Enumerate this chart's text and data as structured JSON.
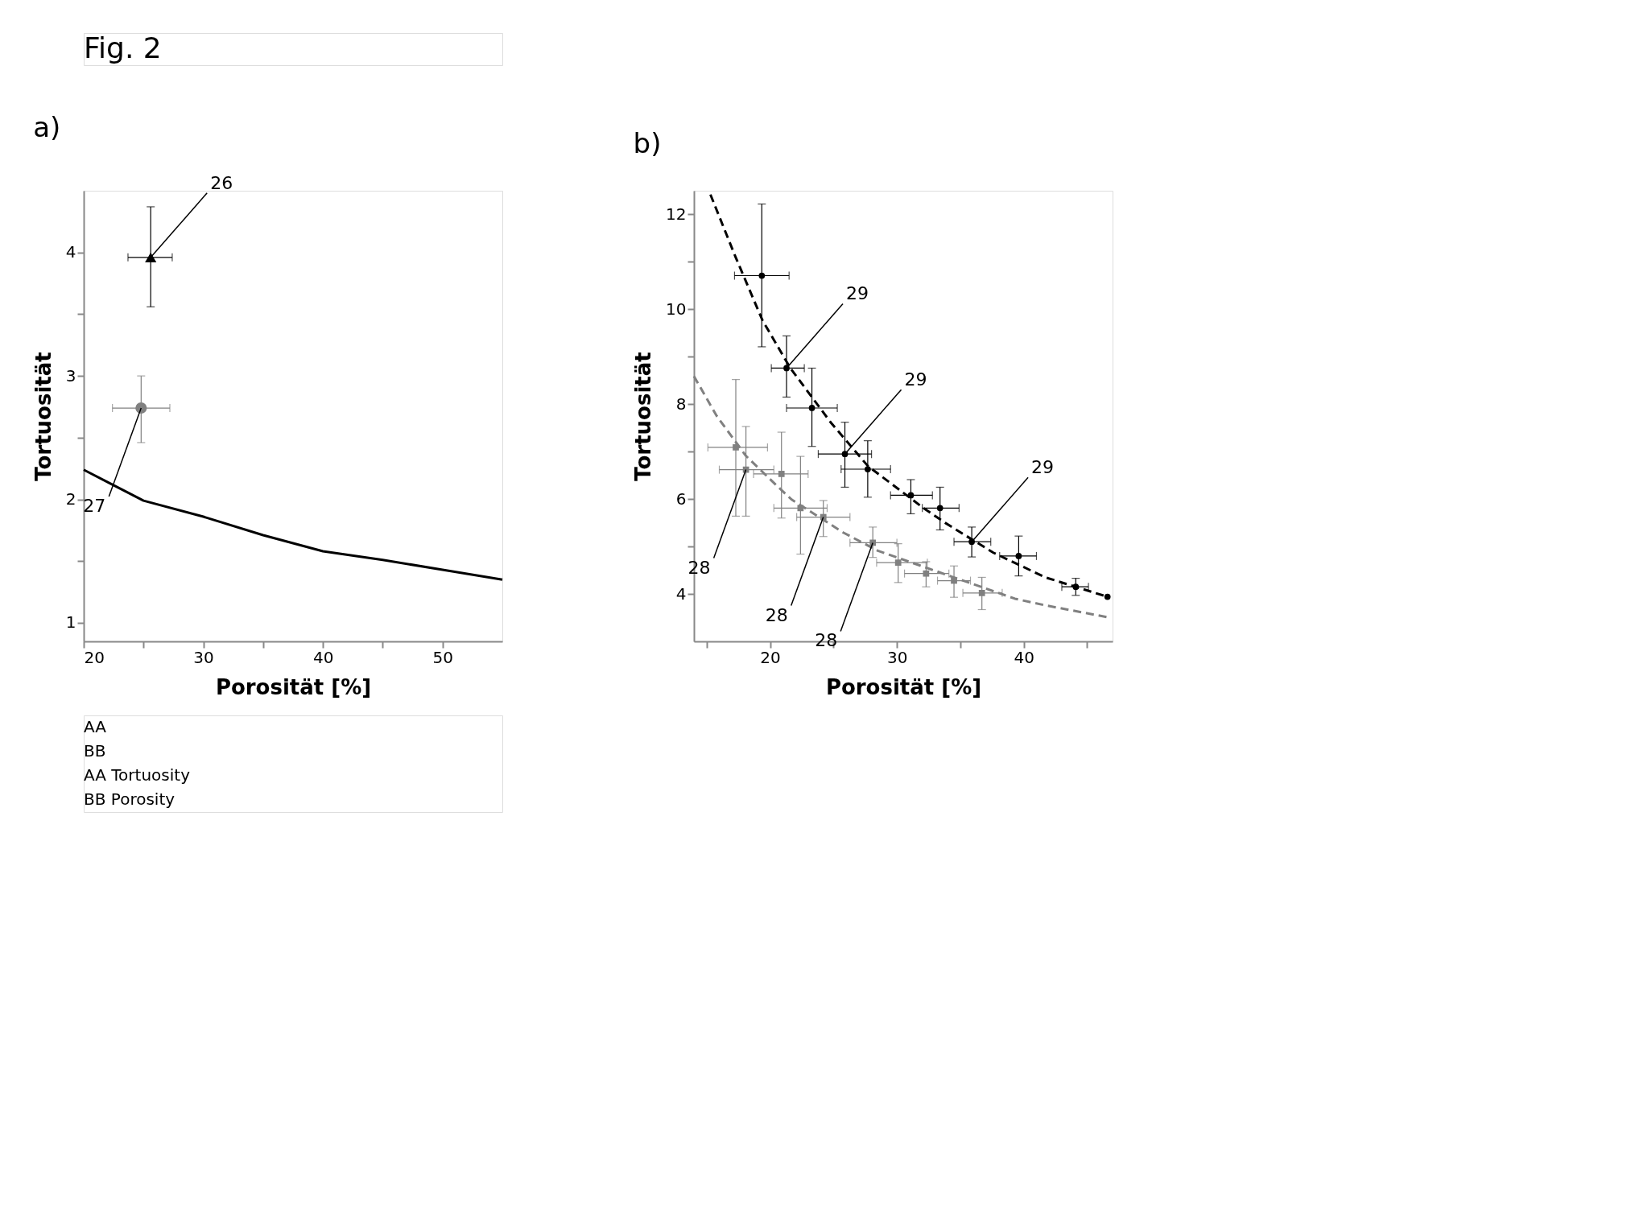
{
  "chart_data": [
    {
      "type": "scatter",
      "title": "a)",
      "xlabel": "Porosität [%]",
      "ylabel": "Tortuosität",
      "xlim": [
        20,
        55
      ],
      "ylim": [
        0.85,
        4.5
      ],
      "xticks": [
        20,
        {
          "value": 25,
          "label": null
        },
        30,
        {
          "value": 35,
          "label": null
        },
        40,
        {
          "value": 45,
          "label": null
        },
        50
      ],
      "yticks": [
        1,
        {
          "value": 1.5,
          "label": null
        },
        2,
        {
          "value": 2.5,
          "label": null
        },
        3,
        {
          "value": 3.5,
          "label": null
        },
        4
      ],
      "series": [
        {
          "type": "scatter",
          "marker": "triangle",
          "color": "#000000",
          "x": [
            25.6
          ],
          "values": [
            3.96
          ],
          "errors": [
            [
              3.56,
              4.37
            ]
          ],
          "xerrors": [
            [
              23.7,
              27.4
            ]
          ]
        },
        {
          "type": "scatter",
          "marker": "circle",
          "color": "#808080",
          "x": [
            24.8
          ],
          "values": [
            2.74
          ],
          "errors": [
            [
              2.46,
              3.0
            ]
          ],
          "xerrors": [
            [
              22.4,
              27.2
            ]
          ]
        },
        {
          "type": "line",
          "line_style": "solid",
          "color": "#000000",
          "x": [
            20,
            22,
            25,
            30,
            35,
            40,
            45,
            50,
            55
          ],
          "values": [
            2.24,
            2.14,
            1.99,
            1.86,
            1.71,
            1.58,
            1.51,
            1.43,
            1.35
          ]
        }
      ],
      "annotations": [
        "Fig. 2",
        "AA",
        "BB",
        "AA    Tortuosity",
        "BB    Porosity",
        {
          "text": "26",
          "x": 25.6,
          "y": 3.96
        },
        {
          "text": "27",
          "x": 24.8,
          "y": 2.74
        }
      ]
    },
    {
      "type": "scatter",
      "title": "b)",
      "xlabel": "Porosität [%]",
      "ylabel": "Tortuosität",
      "xlim": [
        14,
        47
      ],
      "ylim": [
        3.0,
        12.5
      ],
      "xticks": [
        {
          "value": 15,
          "label": null
        },
        20,
        {
          "value": 25,
          "label": null
        },
        30,
        {
          "value": 35,
          "label": null
        },
        40,
        {
          "value": 45,
          "label": null
        }
      ],
      "yticks": [
        4,
        {
          "value": 5,
          "label": null
        },
        6,
        {
          "value": 7,
          "label": null
        },
        8,
        {
          "value": 9,
          "label": null
        },
        10,
        {
          "value": 11,
          "label": null
        },
        12
      ],
      "series": [
        {
          "type": "scatter",
          "marker": "circle",
          "color": "#000000",
          "x": [
            19.35,
            21.3,
            23.3,
            25.9,
            27.7,
            31.1,
            33.4,
            35.9,
            39.6,
            44.1,
            46.6
          ],
          "values": [
            10.71,
            8.76,
            7.92,
            6.95,
            6.63,
            6.08,
            5.81,
            5.1,
            4.8,
            4.15,
            3.94
          ],
          "errors": [
            [
              9.21,
              12.22
            ],
            [
              8.15,
              9.44
            ],
            [
              7.11,
              8.76
            ],
            [
              6.25,
              7.62
            ],
            [
              6.04,
              7.23
            ],
            [
              5.69,
              6.41
            ],
            [
              5.35,
              6.25
            ],
            [
              4.78,
              5.41
            ],
            [
              4.38,
              5.22
            ],
            [
              3.97,
              4.33
            ],
            null
          ],
          "xerrors": [
            [
              17.2,
              21.5
            ],
            [
              20.1,
              22.7
            ],
            [
              21.3,
              25.3
            ],
            [
              23.8,
              28.0
            ],
            [
              25.6,
              29.5
            ],
            [
              29.5,
              32.8
            ],
            [
              32.0,
              34.9
            ],
            [
              34.5,
              37.4
            ],
            [
              38.1,
              41.0
            ],
            [
              43.0,
              45.1
            ],
            null
          ]
        },
        {
          "type": "scatter",
          "marker": "square",
          "color": "#808080",
          "x": [
            17.3,
            18.1,
            20.9,
            22.4,
            24.2,
            28.1,
            30.1,
            32.3,
            34.5,
            36.7
          ],
          "values": [
            7.09,
            6.62,
            6.53,
            5.81,
            5.62,
            5.08,
            4.66,
            4.43,
            4.28,
            4.02
          ],
          "errors": [
            [
              5.64,
              8.52
            ],
            [
              5.64,
              7.53
            ],
            [
              5.6,
              7.41
            ],
            [
              4.84,
              6.9
            ],
            [
              5.21,
              5.97
            ],
            [
              4.77,
              5.41
            ],
            [
              4.24,
              5.06
            ],
            [
              4.15,
              4.68
            ],
            [
              3.93,
              4.59
            ],
            [
              3.67,
              4.35
            ]
          ],
          "xerrors": [
            [
              15.1,
              19.8
            ],
            [
              16.0,
              20.3
            ],
            [
              18.7,
              23.0
            ],
            [
              20.3,
              24.5
            ],
            [
              22.1,
              26.3
            ],
            [
              26.3,
              30.0
            ],
            [
              28.4,
              32.4
            ],
            [
              30.6,
              34.1
            ],
            [
              33.2,
              35.8
            ],
            [
              35.2,
              38.3
            ]
          ]
        },
        {
          "type": "line",
          "line_style": "dashed",
          "color": "#000000",
          "x": [
            15.3,
            17.3,
            19.4,
            21.6,
            24.8,
            27.7,
            32.1,
            33.8,
            37.6,
            41.7,
            46.6
          ],
          "values": [
            12.42,
            11.09,
            9.77,
            8.76,
            7.61,
            6.7,
            5.81,
            5.5,
            4.87,
            4.35,
            3.94
          ]
        },
        {
          "type": "line",
          "line_style": "dashed",
          "color": "#808080",
          "x": [
            14,
            15.8,
            18.1,
            20.5,
            21.7,
            25.8,
            28.5,
            39.3,
            41.7,
            46.6
          ],
          "values": [
            8.59,
            7.75,
            6.91,
            6.29,
            5.99,
            5.29,
            4.91,
            3.9,
            3.76,
            3.51
          ]
        }
      ],
      "annotations": [
        {
          "text": "29",
          "x": 21.3,
          "y": 8.76
        },
        {
          "text": "29",
          "x": 25.9,
          "y": 6.95
        },
        {
          "text": "29",
          "x": 35.9,
          "y": 5.1
        },
        {
          "text": "28",
          "x": 18.1,
          "y": 6.62
        },
        {
          "text": "28",
          "x": 24.2,
          "y": 5.62
        },
        {
          "text": "28",
          "x": 28.1,
          "y": 5.08
        }
      ]
    }
  ]
}
